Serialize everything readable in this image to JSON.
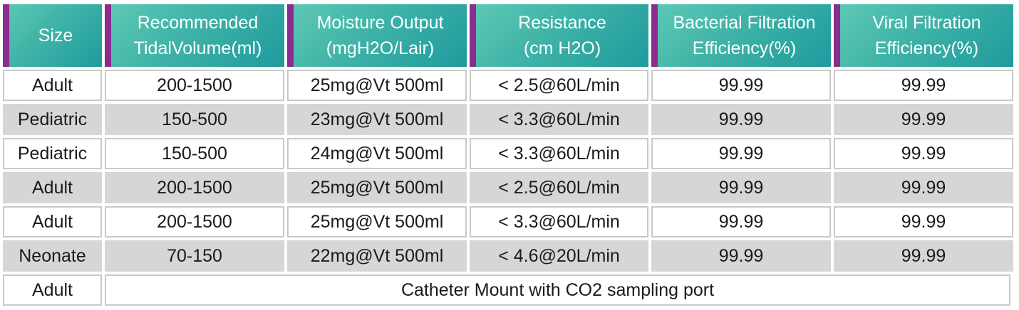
{
  "headers": [
    "Size",
    "Recommended\nTidalVolume(ml)",
    "Moisture Output\n(mgH2O/Lair)",
    "Resistance\n(cm H2O)",
    "Bacterial Filtration\nEfficiency(%)",
    "Viral Filtration\nEfficiency(%)"
  ],
  "rows": [
    [
      "Adult",
      "200-1500",
      "25mg@Vt 500ml",
      "< 2.5@60L/min",
      "99.99",
      "99.99"
    ],
    [
      "Pediatric",
      "150-500",
      "23mg@Vt 500ml",
      "< 3.3@60L/min",
      "99.99",
      "99.99"
    ],
    [
      "Pediatric",
      "150-500",
      "24mg@Vt 500ml",
      "< 3.3@60L/min",
      "99.99",
      "99.99"
    ],
    [
      "Adult",
      "200-1500",
      "25mg@Vt 500ml",
      "< 2.5@60L/min",
      "99.99",
      "99.99"
    ],
    [
      "Adult",
      "200-1500",
      "25mg@Vt 500ml",
      "< 3.3@60L/min",
      "99.99",
      "99.99"
    ],
    [
      "Neonate",
      "70-150",
      "22mg@Vt 500ml",
      "< 4.6@20L/min",
      "99.99",
      "99.99"
    ]
  ],
  "footer_row": {
    "size": "Adult",
    "note": "Catheter Mount with CO2 sampling port"
  },
  "colors": {
    "header_teal": "#3fb3a7",
    "header_accent": "#8b2c8f",
    "row_gray": "#d6d6d6"
  }
}
